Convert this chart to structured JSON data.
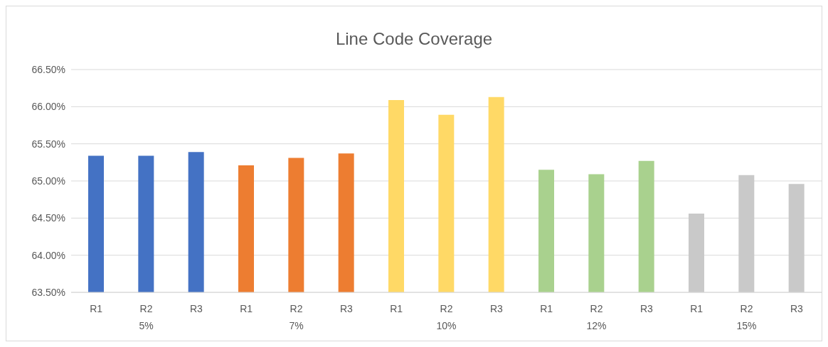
{
  "chart_data": {
    "type": "bar",
    "title": "Line Code Coverage",
    "categories": [
      "R1",
      "R2",
      "R3",
      "R1",
      "R2",
      "R3",
      "R1",
      "R2",
      "R3",
      "R1",
      "R2",
      "R3",
      "R1",
      "R2",
      "R3"
    ],
    "values": [
      65.34,
      65.34,
      65.39,
      65.21,
      65.31,
      65.37,
      66.09,
      65.89,
      66.13,
      65.15,
      65.09,
      65.27,
      64.56,
      65.08,
      64.96
    ],
    "colors": [
      "#4472c4",
      "#4472c4",
      "#4472c4",
      "#ed7d31",
      "#ed7d31",
      "#ed7d31",
      "#ffd966",
      "#ffd966",
      "#ffd966",
      "#a9d18e",
      "#a9d18e",
      "#a9d18e",
      "#c9c9c9",
      "#c9c9c9",
      "#c9c9c9"
    ],
    "annotations": [
      "5%",
      "7%",
      "10%",
      "12%",
      "15%"
    ],
    "ylim": [
      63.5,
      66.5
    ],
    "yticks": [
      {
        "value": 63.5,
        "label": "63.50%"
      },
      {
        "value": 64,
        "label": "64.00%"
      },
      {
        "value": 64.5,
        "label": "64.50%"
      },
      {
        "value": 65,
        "label": "65.00%"
      },
      {
        "value": 65.5,
        "label": "65.50%"
      },
      {
        "value": 66,
        "label": "66.00%"
      },
      {
        "value": 66.5,
        "label": "66.50%"
      }
    ],
    "grid": "y",
    "legend": false
  }
}
